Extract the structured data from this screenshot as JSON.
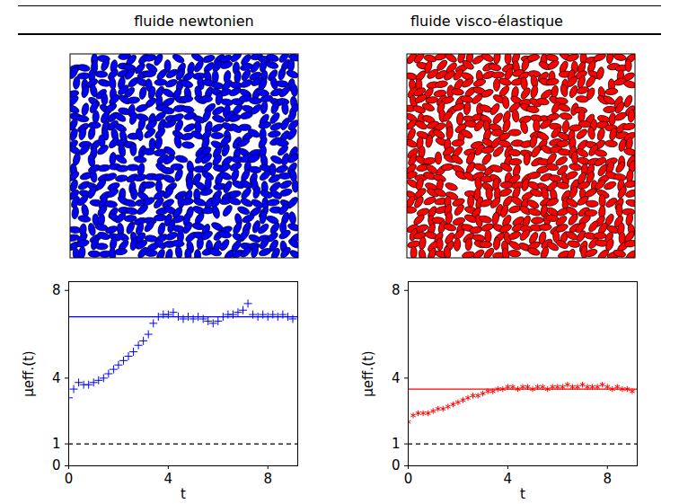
{
  "chart_data": [
    {
      "type": "scatter",
      "title": "fluide newtonien",
      "xlabel": "t",
      "ylabel": "μeff.(t)",
      "xlim": [
        0,
        9.2
      ],
      "ylim": [
        0,
        8.4
      ],
      "xticks": [
        0,
        4,
        8
      ],
      "yticks": [
        0,
        1,
        4,
        8
      ],
      "x": [
        0,
        0.2,
        0.4,
        0.6,
        0.8,
        1.0,
        1.2,
        1.4,
        1.6,
        1.8,
        2.0,
        2.2,
        2.4,
        2.6,
        2.8,
        3.0,
        3.2,
        3.4,
        3.6,
        3.8,
        4.0,
        4.2,
        4.4,
        4.6,
        4.8,
        5.0,
        5.2,
        5.4,
        5.6,
        5.8,
        6.0,
        6.2,
        6.4,
        6.6,
        6.8,
        7.0,
        7.2,
        7.4,
        7.6,
        7.8,
        8.0,
        8.2,
        8.4,
        8.6,
        8.8,
        9.0
      ],
      "values": [
        3.1,
        3.5,
        3.8,
        3.7,
        3.7,
        3.8,
        3.9,
        4.0,
        4.2,
        4.4,
        4.6,
        4.8,
        5.0,
        5.2,
        5.5,
        5.7,
        6.0,
        6.5,
        6.8,
        6.9,
        6.9,
        7.0,
        6.8,
        6.7,
        6.8,
        6.7,
        6.8,
        6.7,
        6.6,
        6.5,
        6.6,
        6.8,
        6.9,
        6.9,
        7.0,
        7.1,
        7.4,
        6.9,
        6.8,
        6.9,
        6.8,
        6.9,
        6.8,
        6.9,
        6.8,
        6.7
      ],
      "color": "#0000ff",
      "marker": "plus",
      "hlines": [
        {
          "value": 6.8,
          "color": "#0000ff",
          "line_style": "solid"
        },
        {
          "value": 1,
          "color": "#000000",
          "line_style": "dashed"
        }
      ]
    },
    {
      "type": "scatter",
      "title": "fluide visco-élastique",
      "xlabel": "t",
      "ylabel": "μeff.(t)",
      "xlim": [
        0,
        9.2
      ],
      "ylim": [
        0,
        8.4
      ],
      "xticks": [
        0,
        4,
        8
      ],
      "yticks": [
        0,
        1,
        4,
        8
      ],
      "x": [
        0,
        0.2,
        0.4,
        0.6,
        0.8,
        1.0,
        1.2,
        1.4,
        1.6,
        1.8,
        2.0,
        2.2,
        2.4,
        2.6,
        2.8,
        3.0,
        3.2,
        3.4,
        3.6,
        3.8,
        4.0,
        4.2,
        4.4,
        4.6,
        4.8,
        5.0,
        5.2,
        5.4,
        5.6,
        5.8,
        6.0,
        6.2,
        6.4,
        6.6,
        6.8,
        7.0,
        7.2,
        7.4,
        7.6,
        7.8,
        8.0,
        8.2,
        8.4,
        8.6,
        8.8,
        9.0
      ],
      "values": [
        2.0,
        2.3,
        2.4,
        2.4,
        2.4,
        2.5,
        2.6,
        2.6,
        2.7,
        2.8,
        2.9,
        3.0,
        3.1,
        3.2,
        3.2,
        3.3,
        3.4,
        3.4,
        3.5,
        3.5,
        3.6,
        3.6,
        3.5,
        3.6,
        3.6,
        3.5,
        3.6,
        3.6,
        3.5,
        3.6,
        3.6,
        3.6,
        3.7,
        3.6,
        3.6,
        3.7,
        3.6,
        3.6,
        3.6,
        3.7,
        3.6,
        3.5,
        3.6,
        3.5,
        3.5,
        3.4
      ],
      "color": "#ff0000",
      "marker": "asterisk",
      "hlines": [
        {
          "value": 3.5,
          "color": "#ff0000",
          "line_style": "solid"
        },
        {
          "value": 1,
          "color": "#000000",
          "line_style": "dashed"
        }
      ]
    }
  ]
}
